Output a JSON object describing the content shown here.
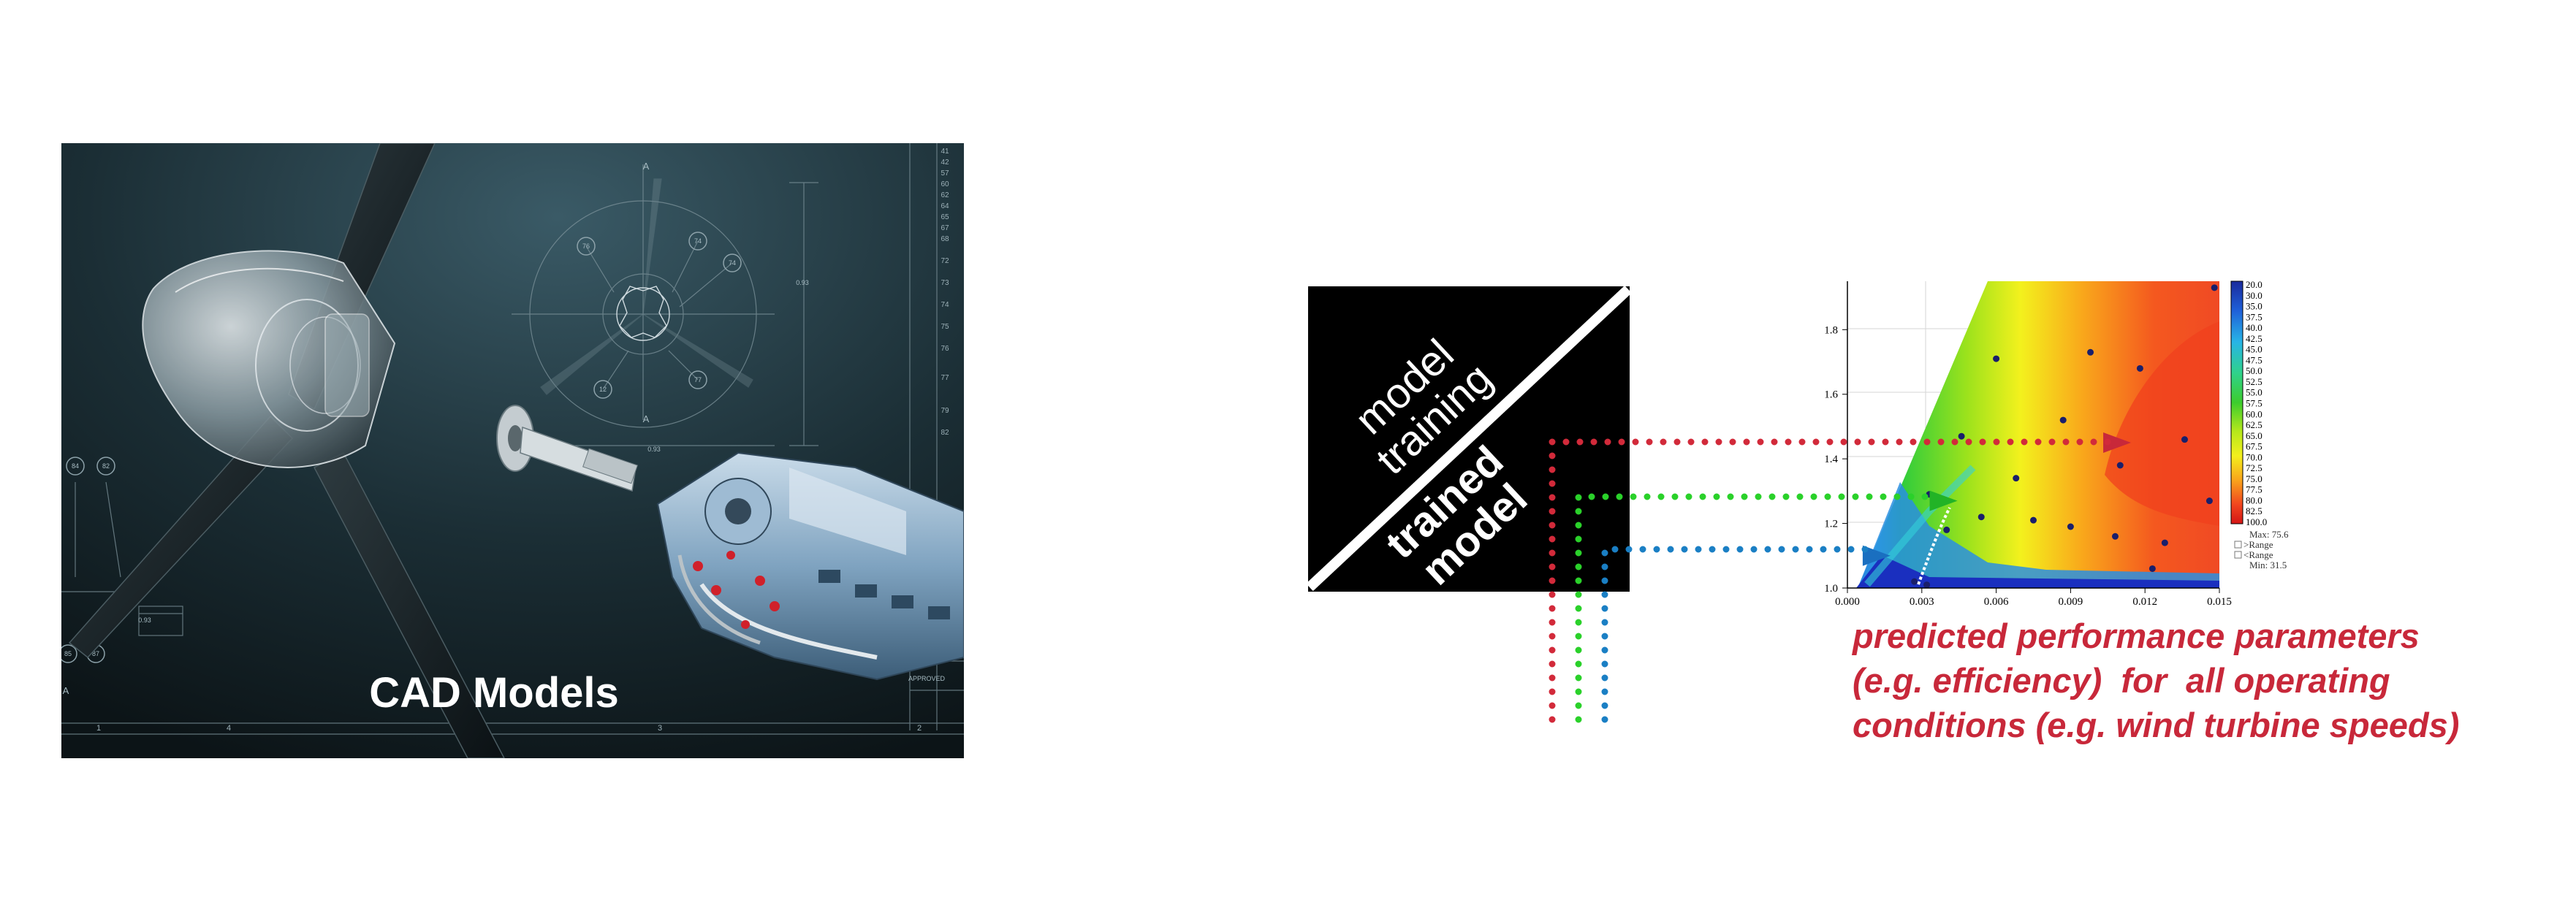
{
  "cad_panel": {
    "title": "CAD Models",
    "drawing_numbers_right": [
      "41",
      "42",
      "57",
      "60",
      "62",
      "64",
      "65",
      "67",
      "68",
      "72",
      "73",
      "74",
      "75",
      "76",
      "77",
      "79",
      "82"
    ],
    "bubble_labels": [
      "76",
      "74",
      "74",
      "77",
      "12",
      "84",
      "82",
      "85",
      "87"
    ],
    "section_mark": "A",
    "dimension_text": "0.93",
    "approved_label": "APPROVED",
    "bottom_ruler": [
      "1",
      "4",
      "3",
      "2"
    ],
    "colors": {
      "background_dark": "#0e1a1f",
      "background_light": "#2b4752",
      "engine_blue": "#8fb3cf",
      "accent_red": "#d0202a"
    }
  },
  "model_box": {
    "upper_label": [
      "model",
      "training"
    ],
    "lower_label": [
      "trained",
      "model"
    ],
    "colors": {
      "box": "#000000",
      "divider": "#ffffff"
    }
  },
  "connector_colors": [
    "#d22a3a",
    "#2ad12a",
    "#1a7fc4"
  ],
  "caption": {
    "lines": [
      "predicted performance parameters",
      "(e.g. efficiency)  for  all operating",
      "conditions (e.g. wind turbine speeds)"
    ],
    "color": "#c8283a"
  },
  "chart_data": {
    "type": "heatmap",
    "x_ticks": [
      "0.000",
      "0.003",
      "0.006",
      "0.009",
      "0.012",
      "0.015"
    ],
    "y_ticks": [
      "1.0",
      "1.2",
      "1.4",
      "1.6",
      "1.8"
    ],
    "xlim": [
      0.0,
      0.015
    ],
    "ylim": [
      1.0,
      1.95
    ],
    "colorbar": {
      "levels": [
        "20.0",
        "30.0",
        "35.0",
        "37.5",
        "40.0",
        "42.5",
        "45.0",
        "47.5",
        "50.0",
        "52.5",
        "55.0",
        "57.5",
        "60.0",
        "62.5",
        "65.0",
        "67.5",
        "70.0",
        "72.5",
        "75.0",
        "77.5",
        "80.0",
        "82.5",
        "100.0"
      ],
      "legend": [
        "Max: 75.6",
        ">Range",
        "<Range",
        "Min: 31.5"
      ]
    },
    "samples": [
      [
        0.006,
        1.71
      ],
      [
        0.0098,
        1.73
      ],
      [
        0.0148,
        1.93
      ],
      [
        0.0118,
        1.68
      ],
      [
        0.0046,
        1.47
      ],
      [
        0.0087,
        1.52
      ],
      [
        0.0136,
        1.46
      ],
      [
        0.0033,
        1.29
      ],
      [
        0.0068,
        1.34
      ],
      [
        0.011,
        1.38
      ],
      [
        0.004,
        1.18
      ],
      [
        0.0054,
        1.22
      ],
      [
        0.0075,
        1.21
      ],
      [
        0.009,
        1.19
      ],
      [
        0.0108,
        1.16
      ],
      [
        0.0128,
        1.14
      ],
      [
        0.0146,
        1.27
      ],
      [
        0.0123,
        1.06
      ],
      [
        0.0027,
        1.02
      ],
      [
        0.0032,
        1.01
      ]
    ],
    "arrows": [
      {
        "series": "red",
        "x": 0.0112,
        "y": 1.45
      },
      {
        "series": "green",
        "x": 0.0042,
        "y": 1.27
      },
      {
        "series": "blue",
        "x": 0.0015,
        "y": 1.1
      }
    ]
  }
}
